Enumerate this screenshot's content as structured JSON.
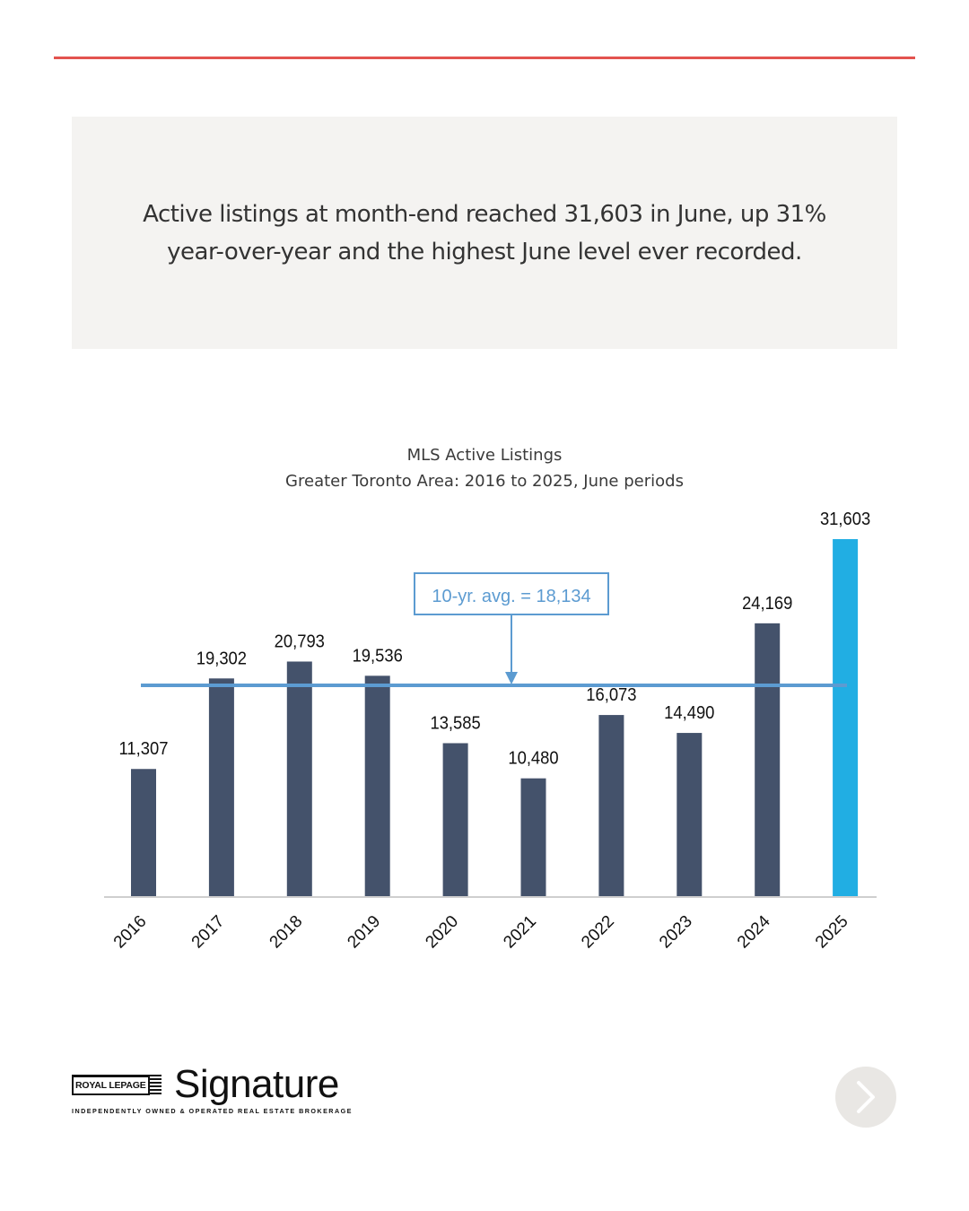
{
  "callout": {
    "text": "Active listings at month-end reached 31,603 in June, up 31% year-over-year and the highest June level ever recorded."
  },
  "colors": {
    "accent_rule": "#e3534f",
    "bar": "#44526b",
    "bar_highlight": "#21aee3",
    "avg_line": "#5c9bd1"
  },
  "chart_data": {
    "type": "bar",
    "title": "MLS Active Listings",
    "subtitle": "Greater Toronto Area: 2016 to 2025, June periods",
    "categories": [
      "2016",
      "2017",
      "2018",
      "2019",
      "2020",
      "2021",
      "2022",
      "2023",
      "2024",
      "2025"
    ],
    "values": [
      11307,
      19302,
      20793,
      19536,
      13585,
      10480,
      16073,
      14490,
      24169,
      31603
    ],
    "value_labels": [
      "11,307",
      "19,302",
      "20,793",
      "19,536",
      "13,585",
      "10,480",
      "16,073",
      "14,490",
      "24,169",
      "31,603"
    ],
    "highlight_category": "2025",
    "reference_line": {
      "value": 18134,
      "label": "10-yr. avg. = 18,134"
    },
    "ylim": [
      0,
      31603
    ],
    "xlabel": "",
    "ylabel": "",
    "grid": false,
    "legend": "none"
  },
  "brand": {
    "royal_lepage": "ROYAL LEPAGE",
    "wordmark": "Signature",
    "tagline": "INDEPENDENTLY OWNED & OPERATED REAL ESTATE BROKERAGE"
  },
  "nav": {
    "next_icon": "chevron-right-icon"
  }
}
